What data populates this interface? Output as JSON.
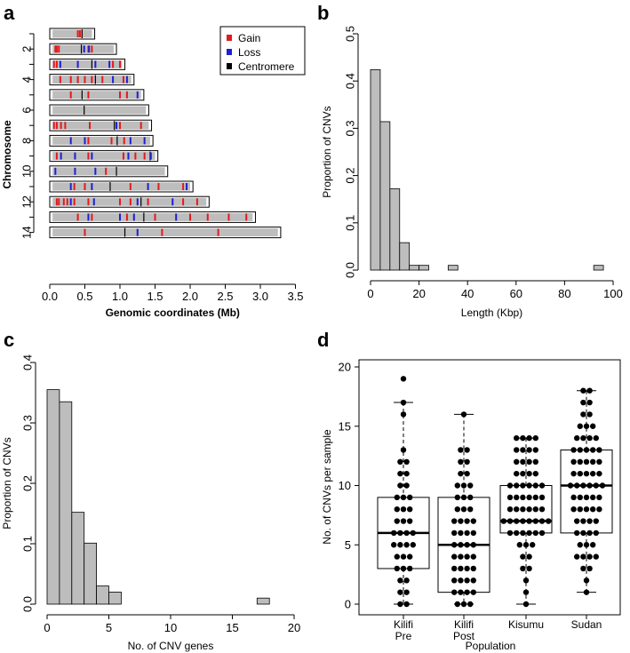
{
  "chart_data": [
    {
      "panel": "a",
      "type": "ideogram",
      "xlabel": "Genomic coordinates (Mb)",
      "ylabel": "Chromosome",
      "xlim": [
        0,
        3.5
      ],
      "x_ticks": [
        "0.0",
        "0.5",
        "1.0",
        "1.5",
        "2.0",
        "2.5",
        "3.0",
        "3.5"
      ],
      "x_tick_values": [
        0,
        0.5,
        1.0,
        1.5,
        2.0,
        2.5,
        3.0,
        3.5
      ],
      "y_ticks": [
        "2",
        "4",
        "6",
        "8",
        "10",
        "12",
        "14"
      ],
      "legend": {
        "position": "top-right",
        "items": [
          {
            "label": "Gain",
            "color": "#e41a1c"
          },
          {
            "label": "Loss",
            "color": "#1f1fd0"
          },
          {
            "label": "Centromere",
            "color": "#000000"
          }
        ]
      },
      "chromosomes": [
        {
          "chr": 1,
          "length": 0.64,
          "centromere": 0.46,
          "gains": [
            0.4,
            0.43
          ],
          "losses": []
        },
        {
          "chr": 2,
          "length": 0.95,
          "centromere": 0.45,
          "gains": [
            0.08,
            0.1,
            0.13,
            0.55,
            0.6
          ],
          "losses": [
            0.49,
            0.56
          ]
        },
        {
          "chr": 3,
          "length": 1.07,
          "centromere": 0.6,
          "gains": [
            0.06,
            0.1,
            0.9,
            1.0
          ],
          "losses": [
            0.15,
            0.4,
            0.65,
            0.85
          ]
        },
        {
          "chr": 4,
          "length": 1.2,
          "centromere": 0.65,
          "gains": [
            0.15,
            0.3,
            0.4,
            0.5,
            0.6,
            0.75,
            1.05
          ],
          "losses": [
            0.9,
            1.1
          ]
        },
        {
          "chr": 5,
          "length": 1.34,
          "centromere": 0.46,
          "gains": [
            0.3,
            0.55,
            1.0,
            1.1
          ],
          "losses": [
            1.25
          ]
        },
        {
          "chr": 6,
          "length": 1.41,
          "centromere": 0.49,
          "gains": [],
          "losses": []
        },
        {
          "chr": 7,
          "length": 1.45,
          "centromere": 0.92,
          "gains": [
            0.06,
            0.1,
            0.16,
            0.22,
            0.57,
            1.0,
            1.3
          ],
          "losses": [
            0.95
          ]
        },
        {
          "chr": 8,
          "length": 1.47,
          "centromere": 0.96,
          "gains": [
            0.55,
            0.88,
            1.06
          ],
          "losses": [
            0.3,
            0.5,
            1.15,
            1.35
          ]
        },
        {
          "chr": 9,
          "length": 1.54,
          "centromere": 1.43,
          "gains": [
            0.1,
            0.55,
            1.05,
            1.22,
            1.35
          ],
          "losses": [
            0.16,
            0.36,
            0.6,
            1.12,
            1.44
          ]
        },
        {
          "chr": 10,
          "length": 1.68,
          "centromere": 0.95,
          "gains": [
            0.8
          ],
          "losses": [
            0.08,
            0.36,
            0.65
          ]
        },
        {
          "chr": 11,
          "length": 2.04,
          "centromere": 0.86,
          "gains": [
            0.35,
            0.5,
            1.15,
            1.55,
            1.9
          ],
          "losses": [
            0.3,
            0.6,
            1.4,
            1.95
          ]
        },
        {
          "chr": 12,
          "length": 2.27,
          "centromere": 1.3,
          "gains": [
            0.1,
            0.13,
            0.2,
            0.25,
            0.35,
            0.55,
            1.0,
            1.15,
            1.4,
            1.9,
            2.1
          ],
          "losses": [
            0.3,
            0.63,
            1.25,
            1.75
          ]
        },
        {
          "chr": 13,
          "length": 2.93,
          "centromere": 1.34,
          "gains": [
            0.4,
            0.6,
            1.1,
            1.5,
            2.0,
            2.25,
            2.55,
            2.8
          ],
          "losses": [
            0.55,
            1.0,
            1.2,
            1.8
          ]
        },
        {
          "chr": 14,
          "length": 3.29,
          "centromere": 1.07,
          "gains": [
            0.5,
            1.6,
            2.4
          ],
          "losses": [
            1.25
          ]
        }
      ]
    },
    {
      "panel": "b",
      "type": "histogram",
      "xlabel": "Length (Kbp)",
      "ylabel": "Proportion of CNVs",
      "xlim": [
        0,
        100
      ],
      "ylim": [
        0,
        0.5
      ],
      "x_ticks": [
        "0",
        "20",
        "40",
        "60",
        "80",
        "100"
      ],
      "x_tick_values": [
        0,
        20,
        40,
        60,
        80,
        100
      ],
      "y_ticks": [
        "0.0",
        "0.1",
        "0.2",
        "0.3",
        "0.4",
        "0.5"
      ],
      "y_tick_values": [
        0,
        0.1,
        0.2,
        0.3,
        0.4,
        0.5
      ],
      "bins": [
        {
          "x0": 0,
          "x1": 4,
          "value": 0.424
        },
        {
          "x0": 4,
          "x1": 8,
          "value": 0.314
        },
        {
          "x0": 8,
          "x1": 12,
          "value": 0.172
        },
        {
          "x0": 12,
          "x1": 16,
          "value": 0.058
        },
        {
          "x0": 16,
          "x1": 20,
          "value": 0.01
        },
        {
          "x0": 20,
          "x1": 24,
          "value": 0.01
        },
        {
          "x0": 32,
          "x1": 36,
          "value": 0.01
        },
        {
          "x0": 92,
          "x1": 96,
          "value": 0.01
        }
      ]
    },
    {
      "panel": "c",
      "type": "histogram",
      "xlabel": "No. of CNV genes",
      "ylabel": "Proportion of CNVs",
      "xlim": [
        0,
        20
      ],
      "ylim": [
        0,
        0.4
      ],
      "x_ticks": [
        "0",
        "5",
        "10",
        "15",
        "20"
      ],
      "x_tick_values": [
        0,
        5,
        10,
        15,
        20
      ],
      "y_ticks": [
        "0.0",
        "0.1",
        "0.2",
        "0.3",
        "0.4"
      ],
      "y_tick_values": [
        0,
        0.1,
        0.2,
        0.3,
        0.4
      ],
      "bins": [
        {
          "x0": 0,
          "x1": 1,
          "value": 0.355
        },
        {
          "x0": 1,
          "x1": 2,
          "value": 0.335
        },
        {
          "x0": 2,
          "x1": 3,
          "value": 0.152
        },
        {
          "x0": 3,
          "x1": 4,
          "value": 0.101
        },
        {
          "x0": 4,
          "x1": 5,
          "value": 0.03
        },
        {
          "x0": 5,
          "x1": 6,
          "value": 0.02
        },
        {
          "x0": 17,
          "x1": 18,
          "value": 0.01
        }
      ]
    },
    {
      "panel": "d",
      "type": "boxplot",
      "xlabel": "Population",
      "ylabel": "No. of CNVs per sample",
      "ylim": [
        0,
        20
      ],
      "y_ticks": [
        "0",
        "5",
        "10",
        "15",
        "20"
      ],
      "y_tick_values": [
        0,
        5,
        10,
        15,
        20
      ],
      "groups": [
        {
          "label_lines": [
            "Kilifi",
            "Pre"
          ],
          "min": 0,
          "q1": 3,
          "median": 6,
          "q3": 9,
          "max": 17,
          "counts": {
            "0": 2,
            "1": 2,
            "2": 2,
            "3": 3,
            "4": 3,
            "5": 4,
            "6": 4,
            "7": 3,
            "8": 3,
            "9": 3,
            "10": 2,
            "11": 2,
            "12": 2,
            "13": 1,
            "16": 1,
            "17": 1,
            "19": 1
          }
        },
        {
          "label_lines": [
            "Kilifi",
            "Post"
          ],
          "min": 0,
          "q1": 1,
          "median": 5,
          "q3": 9,
          "max": 16,
          "counts": {
            "0": 3,
            "1": 4,
            "2": 4,
            "3": 4,
            "4": 4,
            "5": 4,
            "6": 4,
            "7": 4,
            "8": 3,
            "9": 3,
            "10": 3,
            "11": 2,
            "12": 2,
            "13": 2,
            "16": 1
          }
        },
        {
          "label_lines": [
            "Kisumu",
            ""
          ],
          "min": 0,
          "q1": 6,
          "median": 7,
          "q3": 10,
          "max": 14,
          "counts": {
            "0": 1,
            "1": 1,
            "2": 1,
            "3": 2,
            "4": 2,
            "5": 3,
            "6": 6,
            "7": 8,
            "8": 6,
            "9": 6,
            "10": 6,
            "11": 4,
            "12": 4,
            "13": 4,
            "14": 4
          }
        },
        {
          "label_lines": [
            "Sudan",
            ""
          ],
          "min": 1,
          "q1": 6,
          "median": 10,
          "q3": 13,
          "max": 18,
          "counts": {
            "1": 1,
            "2": 1,
            "3": 2,
            "4": 4,
            "5": 3,
            "6": 4,
            "7": 4,
            "8": 5,
            "9": 5,
            "10": 6,
            "11": 5,
            "12": 5,
            "13": 5,
            "14": 4,
            "15": 3,
            "16": 2,
            "17": 2,
            "18": 2
          }
        }
      ]
    }
  ]
}
